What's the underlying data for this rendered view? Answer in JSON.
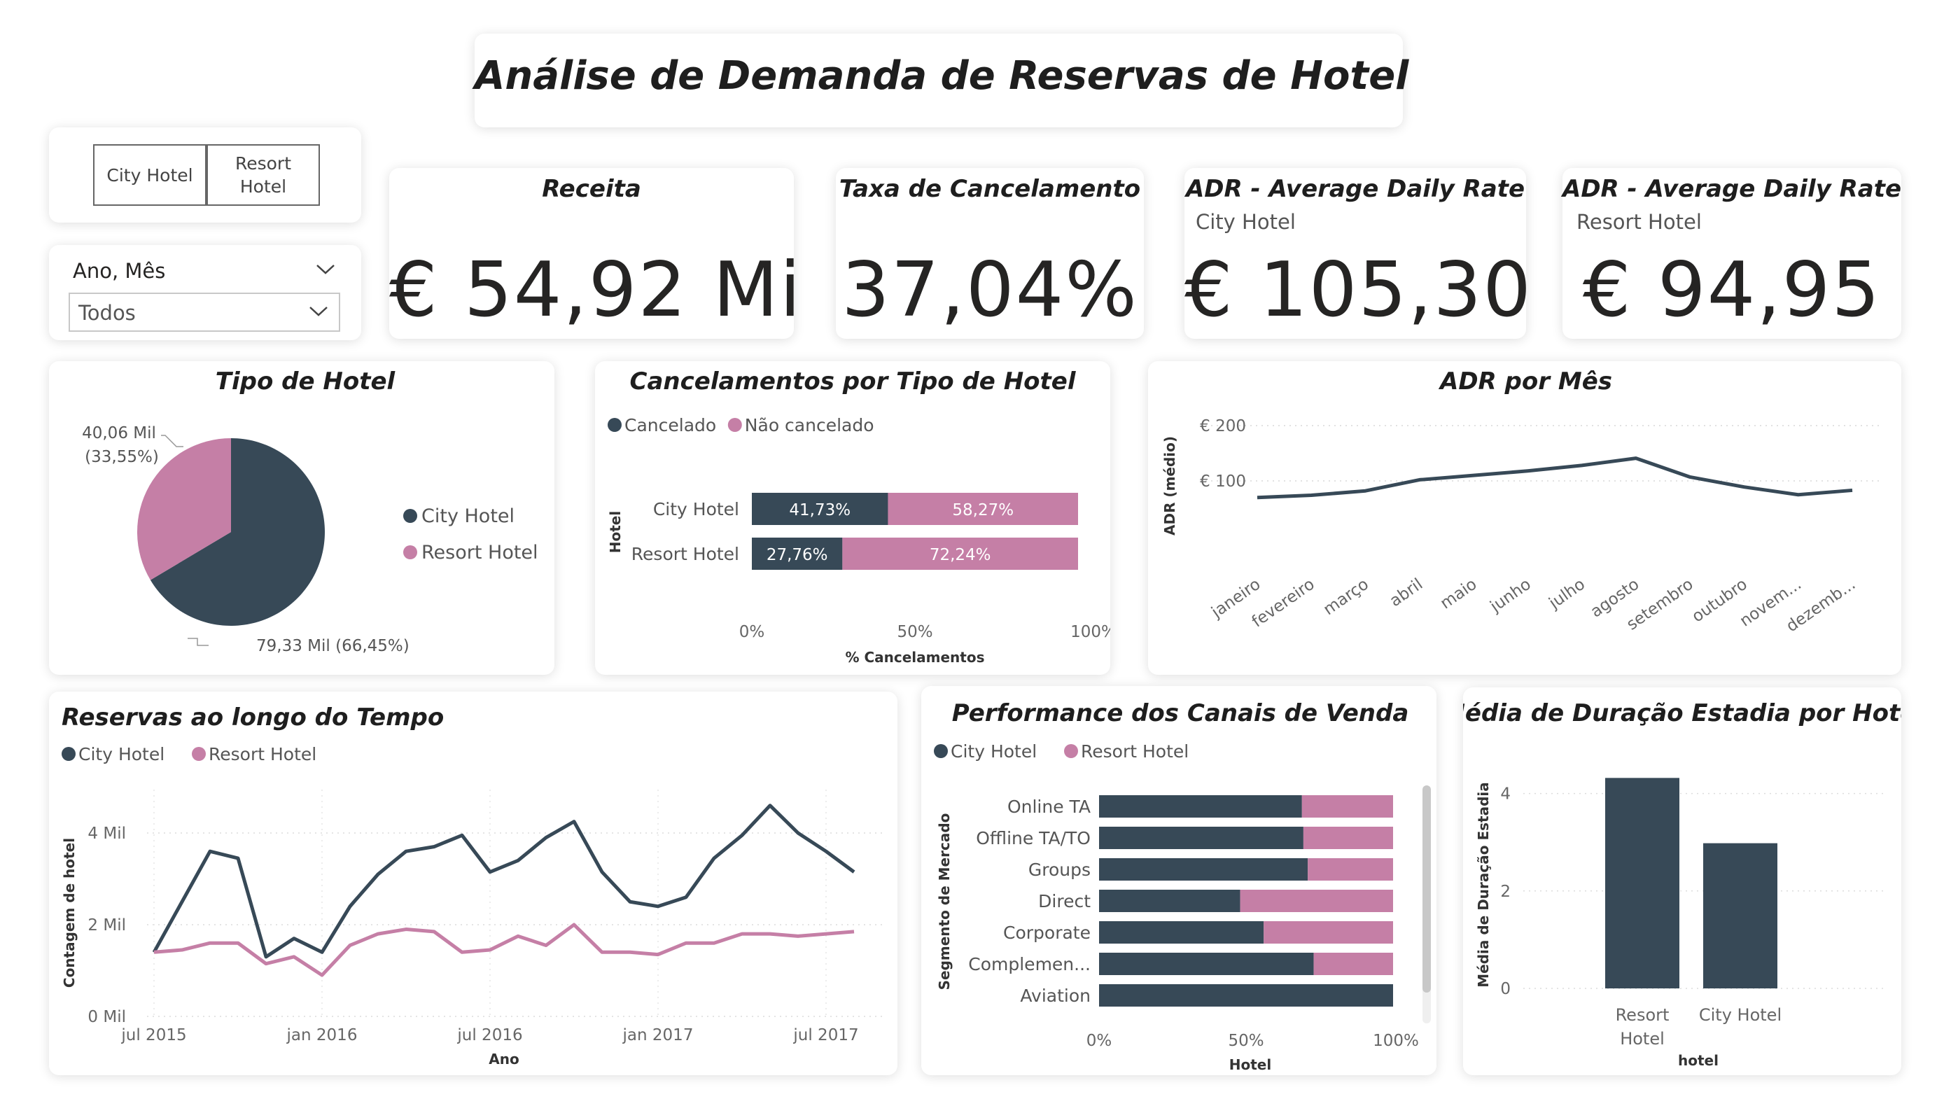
{
  "page_title": "Análise de Demanda de Reservas de Hotel",
  "slicer_hotel": {
    "options": [
      "City Hotel",
      "Resort Hotel"
    ]
  },
  "slicer_date": {
    "label": "Ano, Mês",
    "value": "Todos"
  },
  "kpis": {
    "receita": {
      "title": "Receita",
      "value": "€ 54,92 Mi"
    },
    "cancelamento": {
      "title": "Taxa de Cancelamento",
      "value": "37,04%"
    },
    "adr_city": {
      "title": "ADR - Average Daily Rate",
      "subtitle": "City Hotel",
      "value": "€ 105,30"
    },
    "adr_resort": {
      "title": "ADR - Average Daily Rate",
      "subtitle": "Resort Hotel",
      "value": "€ 94,95"
    }
  },
  "colors": {
    "city": "#374957",
    "resort": "#c57fa6"
  },
  "chart_data": [
    {
      "type": "pie",
      "title": "Tipo de Hotel",
      "legend": [
        "City Hotel",
        "Resort Hotel"
      ],
      "legend_position": "right",
      "slices": [
        {
          "label": "City Hotel",
          "value": 79.33,
          "value_label": "79,33 Mil (66,45%)"
        },
        {
          "label": "Resort Hotel",
          "value": 40.06,
          "value_label_lines": [
            "40,06 Mil",
            "(33,55%)"
          ]
        }
      ]
    },
    {
      "type": "bar",
      "orientation": "horizontal",
      "stacked": "100%",
      "title": "Cancelamentos por Tipo de Hotel",
      "legend": [
        "Cancelado",
        "Não cancelado"
      ],
      "legend_position": "top-left",
      "ylabel": "Hotel",
      "xlabel": "% Cancelamentos",
      "categories": [
        "City Hotel",
        "Resort Hotel"
      ],
      "series": [
        {
          "name": "Cancelado",
          "values": [
            41.73,
            27.76
          ],
          "labels": [
            "41,73%",
            "27,76%"
          ]
        },
        {
          "name": "Não cancelado",
          "values": [
            58.27,
            72.24
          ],
          "labels": [
            "58,27%",
            "72,24%"
          ]
        }
      ],
      "xlim": [
        0,
        100
      ],
      "xticks": [
        "0%",
        "50%",
        "100%"
      ]
    },
    {
      "type": "line",
      "title": "ADR por Mês",
      "ylabel": "ADR (médio)",
      "categories": [
        "janeiro",
        "fevereiro",
        "março",
        "abril",
        "maio",
        "junho",
        "julho",
        "agosto",
        "setembro",
        "outubro",
        "novem...",
        "dezemb..."
      ],
      "values": [
        70,
        74,
        82,
        102,
        110,
        118,
        128,
        141,
        107,
        89,
        75,
        83
      ],
      "ylim": [
        0,
        220
      ],
      "yticks": [
        {
          "v": 100,
          "label": "€ 100"
        },
        {
          "v": 200,
          "label": "€ 200"
        }
      ],
      "grid": true
    },
    {
      "type": "line",
      "title": "Reservas ao longo do Tempo",
      "legend": [
        "City Hotel",
        "Resort Hotel"
      ],
      "legend_position": "top-left",
      "xlabel": "Ano",
      "ylabel": "Contagem de hotel",
      "x": [
        "2015-07",
        "2015-08",
        "2015-09",
        "2015-10",
        "2015-11",
        "2015-12",
        "2016-01",
        "2016-02",
        "2016-03",
        "2016-04",
        "2016-05",
        "2016-06",
        "2016-07",
        "2016-08",
        "2016-09",
        "2016-10",
        "2016-11",
        "2016-12",
        "2017-01",
        "2017-02",
        "2017-03",
        "2017-04",
        "2017-05",
        "2017-06",
        "2017-07",
        "2017-08"
      ],
      "xticks": [
        {
          "i": 0,
          "label": "jul 2015"
        },
        {
          "i": 6,
          "label": "jan 2016"
        },
        {
          "i": 12,
          "label": "jul 2016"
        },
        {
          "i": 18,
          "label": "jan 2017"
        },
        {
          "i": 24,
          "label": "jul 2017"
        }
      ],
      "series": [
        {
          "name": "City Hotel",
          "values": [
            1400,
            2500,
            3600,
            3450,
            1300,
            1700,
            1400,
            2400,
            3100,
            3600,
            3700,
            3950,
            3150,
            3400,
            3900,
            4250,
            3150,
            2500,
            2400,
            2600,
            3450,
            3950,
            4600,
            4000,
            3600,
            3150
          ]
        },
        {
          "name": "Resort Hotel",
          "values": [
            1400,
            1450,
            1600,
            1600,
            1150,
            1300,
            900,
            1550,
            1800,
            1900,
            1850,
            1400,
            1450,
            1750,
            1550,
            2000,
            1400,
            1400,
            1350,
            1600,
            1600,
            1800,
            1800,
            1750,
            1800,
            1850
          ]
        }
      ],
      "ylim": [
        0,
        5000
      ],
      "yticks": [
        {
          "v": 0,
          "label": "0 Mil"
        },
        {
          "v": 2000,
          "label": "2 Mil"
        },
        {
          "v": 4000,
          "label": "4 Mil"
        }
      ],
      "grid": true
    },
    {
      "type": "bar",
      "orientation": "horizontal",
      "stacked": "100%",
      "title": "Performance dos Canais de Venda",
      "legend": [
        "City Hotel",
        "Resort Hotel"
      ],
      "legend_position": "top-left",
      "ylabel": "Segmento de Mercado",
      "xlabel": "Hotel",
      "categories": [
        "Online TA",
        "Offline TA/TO",
        "Groups",
        "Direct",
        "Corporate",
        "Complemen...",
        "Aviation"
      ],
      "series": [
        {
          "name": "City Hotel",
          "values": [
            69,
            69.5,
            71,
            48,
            56,
            73,
            100
          ]
        },
        {
          "name": "Resort Hotel",
          "values": [
            31,
            30.5,
            29,
            52,
            44,
            27,
            0
          ]
        }
      ],
      "xlim": [
        0,
        100
      ],
      "xticks": [
        "0%",
        "50%",
        "100%"
      ]
    },
    {
      "type": "bar",
      "title": "Média de Duração Estadia por Hotel",
      "xlabel": "hotel",
      "ylabel": "Média de Duração Estadia",
      "categories": [
        [
          "Resort",
          "Hotel"
        ],
        [
          "City Hotel"
        ]
      ],
      "values": [
        4.32,
        2.98
      ],
      "ylim": [
        0,
        4.5
      ],
      "yticks": [
        {
          "v": 0,
          "label": "0"
        },
        {
          "v": 2,
          "label": "2"
        },
        {
          "v": 4,
          "label": "4"
        }
      ]
    }
  ]
}
